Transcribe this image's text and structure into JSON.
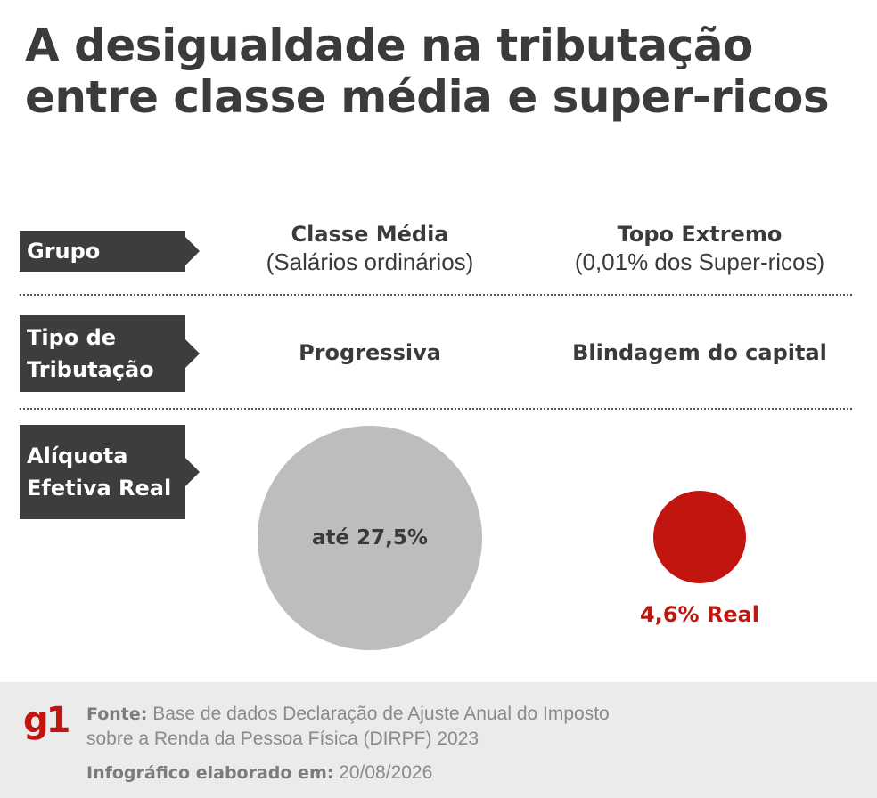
{
  "title": {
    "line1": "A desigualdade na tributação",
    "line2": "entre classe média e super-ricos"
  },
  "rows": {
    "grupo": {
      "label": "Grupo",
      "col1_main": "Classe Média",
      "col1_sub": "(Salários ordinários)",
      "col2_main": "Topo Extremo",
      "col2_sub": "(0,01% dos Super-ricos)"
    },
    "tipo": {
      "label_line1": "Tipo de",
      "label_line2": "Tributação",
      "col1": "Progressiva",
      "col2": "Blindagem do capital"
    },
    "aliquota": {
      "label_line1": "Alíquota",
      "label_line2": "Efetiva Real",
      "col1": "até 27,5%",
      "col2": "4,6% Real"
    }
  },
  "footer": {
    "logo": "g1",
    "source_key": "Fonte:",
    "source_line1": "Base de dados Declaração de Ajuste Anual do Imposto",
    "source_line2": "sobre a Renda da Pessoa Física (DIRPF) 2023",
    "made_key": "Infográfico elaborado em:",
    "made_value": "20/08/2026"
  },
  "colors": {
    "label_bg": "#3d3d3d",
    "gray_circle": "#bdbdbd",
    "red": "#c2150f",
    "footer_bg": "#ebebeb"
  }
}
